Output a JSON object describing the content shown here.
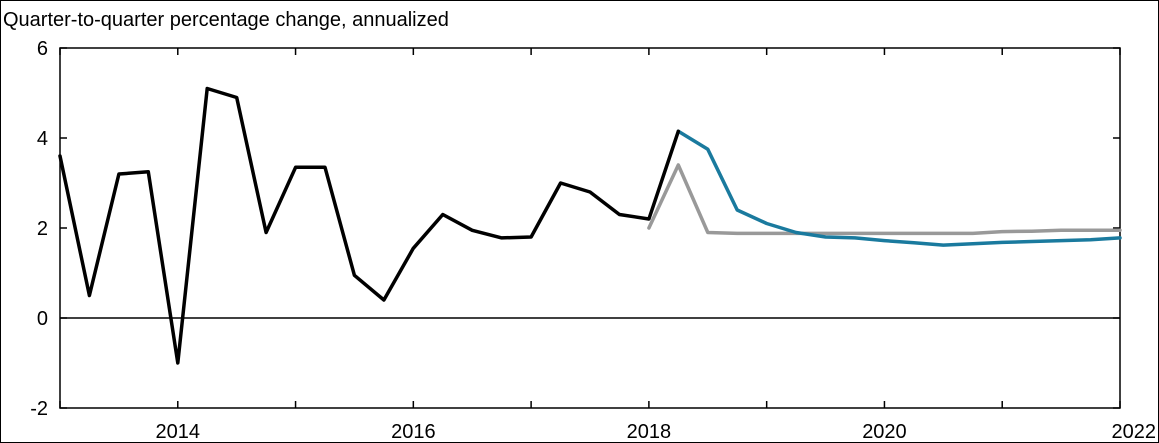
{
  "chart_data": {
    "type": "line",
    "title": "Quarter-to-quarter percentage change, annualized",
    "xlabel": "",
    "ylabel": "",
    "xlim": [
      2013.0,
      2022.0
    ],
    "ylim": [
      -2,
      6
    ],
    "x_tick_labels": [
      {
        "value": 2014,
        "label": "2014"
      },
      {
        "value": 2016,
        "label": "2016"
      },
      {
        "value": 2018,
        "label": "2018"
      },
      {
        "value": 2020,
        "label": "2020"
      },
      {
        "value": 2022,
        "label": "2022"
      }
    ],
    "x_minor_ticks": [
      2013,
      2014,
      2015,
      2016,
      2017,
      2018,
      2019,
      2020,
      2021,
      2022
    ],
    "y_ticks": [
      {
        "value": -2,
        "label": "-2"
      },
      {
        "value": 0,
        "label": "0"
      },
      {
        "value": 2,
        "label": "2"
      },
      {
        "value": 4,
        "label": "4"
      },
      {
        "value": 6,
        "label": "6"
      }
    ],
    "zero_line": true,
    "series": [
      {
        "color": "#999999",
        "x": [
          2018.0,
          2018.25,
          2018.5,
          2018.75,
          2019.0,
          2019.25,
          2019.5,
          2019.75,
          2020.0,
          2020.25,
          2020.5,
          2020.75,
          2021.0,
          2021.25,
          2021.5,
          2021.75,
          2022.0
        ],
        "y": [
          2.0,
          3.4,
          1.9,
          1.88,
          1.88,
          1.88,
          1.88,
          1.88,
          1.88,
          1.88,
          1.88,
          1.88,
          1.92,
          1.93,
          1.95,
          1.95,
          1.95
        ]
      },
      {
        "color": "#1a7a9e",
        "x": [
          2018.25,
          2018.5,
          2018.75,
          2019.0,
          2019.25,
          2019.5,
          2019.75,
          2020.0,
          2020.25,
          2020.5,
          2020.75,
          2021.0,
          2021.25,
          2021.5,
          2021.75,
          2022.0
        ],
        "y": [
          4.15,
          3.75,
          2.4,
          2.1,
          1.9,
          1.8,
          1.78,
          1.72,
          1.67,
          1.62,
          1.65,
          1.68,
          1.7,
          1.72,
          1.74,
          1.78
        ]
      },
      {
        "color": "#000000",
        "x": [
          2013.0,
          2013.25,
          2013.5,
          2013.75,
          2014.0,
          2014.25,
          2014.5,
          2014.75,
          2015.0,
          2015.25,
          2015.5,
          2015.75,
          2016.0,
          2016.25,
          2016.5,
          2016.75,
          2017.0,
          2017.25,
          2017.5,
          2017.75,
          2018.0,
          2018.25
        ],
        "y": [
          3.6,
          0.5,
          3.2,
          3.25,
          -1.0,
          5.1,
          4.9,
          1.9,
          3.35,
          3.35,
          0.95,
          0.4,
          1.55,
          2.3,
          1.95,
          1.78,
          1.8,
          3.0,
          2.8,
          2.3,
          2.2,
          4.15
        ]
      }
    ]
  }
}
